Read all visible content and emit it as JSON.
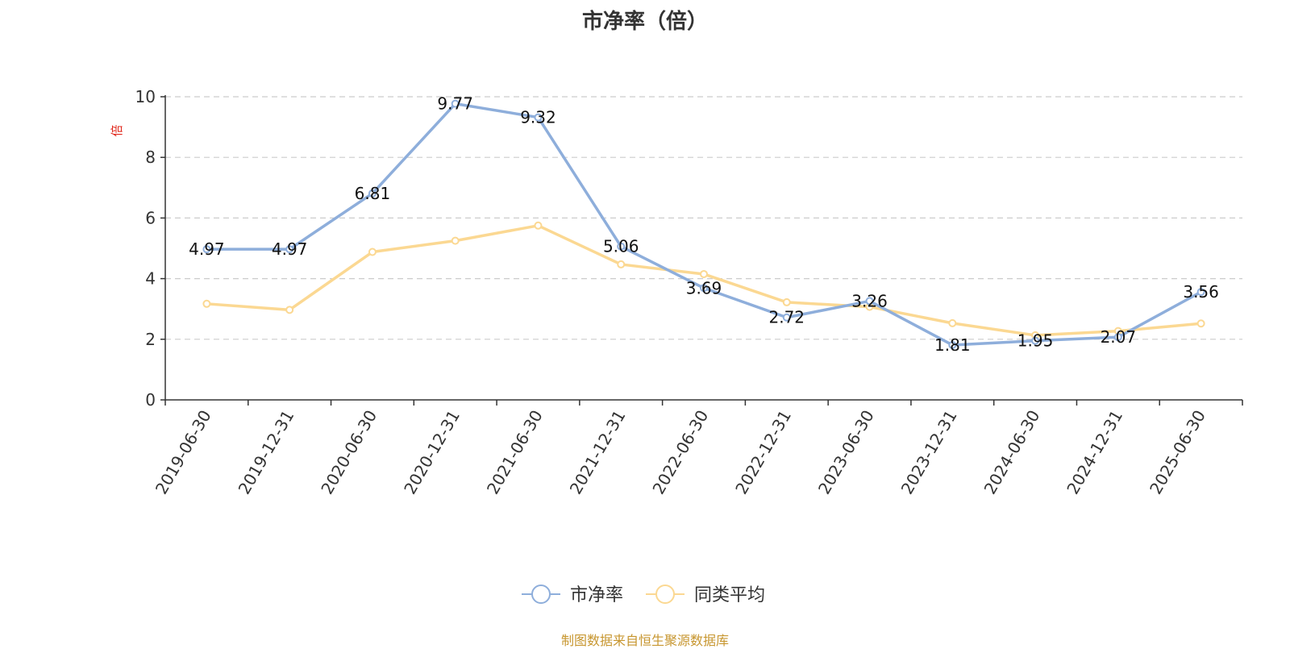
{
  "chart_data": {
    "type": "line",
    "title": "市净率（倍）",
    "ylabel": "倍",
    "xlabel": "",
    "categories": [
      "2019-06-30",
      "2019-12-31",
      "2020-06-30",
      "2020-12-31",
      "2021-06-30",
      "2021-12-31",
      "2022-06-30",
      "2022-12-31",
      "2023-06-30",
      "2023-12-31",
      "2024-06-30",
      "2024-12-31",
      "2025-06-30"
    ],
    "ylim": [
      0,
      10
    ],
    "yticks": [
      0,
      2,
      4,
      6,
      8,
      10
    ],
    "grid": true,
    "legend_position": "bottom",
    "series": [
      {
        "name": "市净率",
        "color": "#8eaedb",
        "values": [
          4.97,
          4.97,
          6.81,
          9.77,
          9.32,
          5.06,
          3.69,
          2.72,
          3.26,
          1.81,
          1.95,
          2.07,
          3.56
        ],
        "labels": [
          "4.97",
          "4.97",
          "6.81",
          "9.77",
          "9.32",
          "5.06",
          "3.69",
          "2.72",
          "3.26",
          "1.81",
          "1.95",
          "2.07",
          "3.56"
        ]
      },
      {
        "name": "同类平均",
        "color": "#fbd892",
        "values": [
          3.17,
          2.97,
          4.88,
          5.25,
          5.75,
          4.47,
          4.15,
          3.22,
          3.07,
          2.53,
          2.13,
          2.27,
          2.52
        ]
      }
    ]
  },
  "footer": {
    "source": "制图数据来自恒生聚源数据库"
  }
}
